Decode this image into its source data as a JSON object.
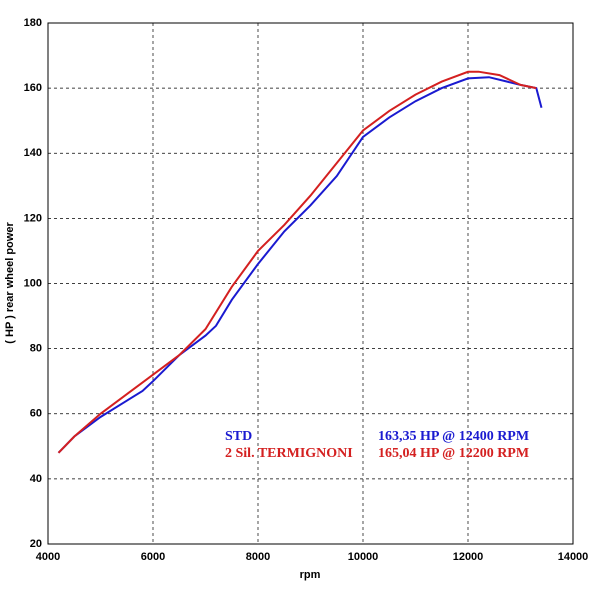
{
  "chart_data": {
    "type": "line",
    "xlabel": "rpm",
    "ylabel": "( HP )  rear wheel power",
    "xlim": [
      4000,
      14000
    ],
    "xticks": [
      4000,
      6000,
      8000,
      10000,
      12000,
      14000
    ],
    "ylim": [
      20,
      180
    ],
    "yticks": [
      20,
      40,
      60,
      80,
      100,
      120,
      140,
      160,
      180
    ],
    "grid": true,
    "series": [
      {
        "name": "STD",
        "color": "#1a1ad0",
        "peak_label": "163,35 HP @ 12400 RPM",
        "x": [
          4200,
          4500,
          5000,
          5500,
          5800,
          6000,
          6500,
          7000,
          7200,
          7500,
          8000,
          8500,
          9000,
          9500,
          10000,
          10500,
          11000,
          11500,
          12000,
          12400,
          13000,
          13300,
          13400
        ],
        "values": [
          48,
          53,
          59,
          64,
          67,
          70,
          78,
          84,
          87,
          95,
          106,
          116,
          124,
          133,
          145,
          151,
          156,
          160,
          163,
          163.35,
          161,
          160,
          154
        ]
      },
      {
        "name": "2 Sil. TERMIGNONI",
        "color": "#d42020",
        "peak_label": "165,04 HP @ 12200 RPM",
        "x": [
          4200,
          4500,
          5000,
          5500,
          6000,
          6500,
          7000,
          7500,
          8000,
          8500,
          9000,
          9500,
          10000,
          10500,
          11000,
          11500,
          12000,
          12200,
          12600,
          13000,
          13300
        ],
        "values": [
          48,
          53,
          60,
          66,
          72,
          78,
          86,
          99,
          110,
          118,
          127,
          137,
          147,
          153,
          158,
          162,
          165,
          165.04,
          164,
          161,
          160
        ]
      }
    ]
  }
}
